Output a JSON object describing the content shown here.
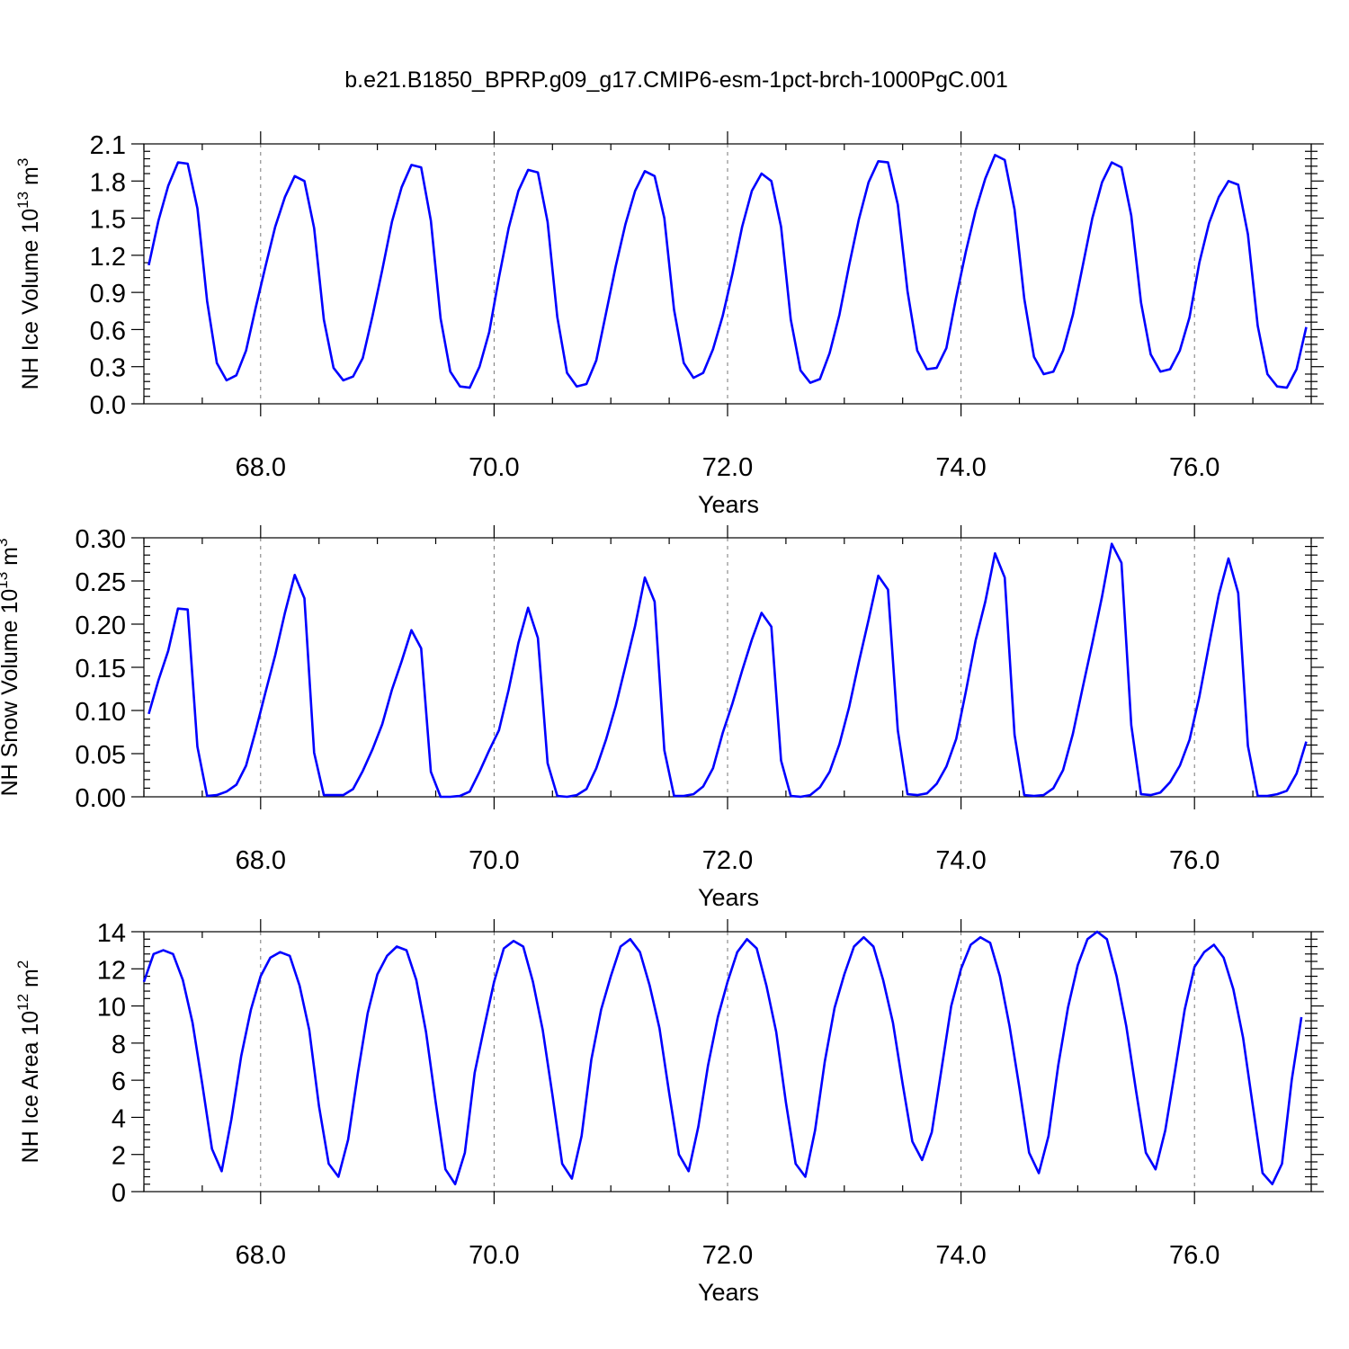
{
  "title": "b.e21.B1850_BPRP.g09_g17.CMIP6-esm-1pct-brch-1000PgC.001",
  "colors": {
    "series": "#0000ff",
    "axis": "#000000",
    "grid": "#777777"
  },
  "chart_data": [
    {
      "type": "line",
      "ylabel": {
        "main": "NH Ice Volume 10",
        "exp": "13",
        "unit": " m",
        "unit_exp": "3"
      },
      "xlabel": "Years",
      "xlim": [
        67.0,
        77.0
      ],
      "ylim": [
        0.0,
        2.1
      ],
      "x_ticks": [
        "68.0",
        "70.0",
        "72.0",
        "74.0",
        "76.0"
      ],
      "x_tick_values": [
        68,
        70,
        72,
        74,
        76
      ],
      "y_ticks": [
        "0.0",
        "0.3",
        "0.6",
        "0.9",
        "1.2",
        "1.5",
        "1.8",
        "2.1"
      ],
      "y_tick_values": [
        0,
        0.3,
        0.6,
        0.9,
        1.2,
        1.5,
        1.8,
        2.1
      ],
      "grid": "vertical dashed at major x ticks",
      "x_start": 67.0417,
      "x_step": 0.08333,
      "series": [
        {
          "values": [
            1.12,
            1.48,
            1.76,
            1.95,
            1.94,
            1.58,
            0.83,
            0.33,
            0.19,
            0.23,
            0.43,
            0.78,
            1.11,
            1.43,
            1.67,
            1.84,
            1.8,
            1.42,
            0.68,
            0.29,
            0.19,
            0.22,
            0.37,
            0.71,
            1.08,
            1.47,
            1.75,
            1.93,
            1.91,
            1.48,
            0.69,
            0.26,
            0.14,
            0.13,
            0.3,
            0.58,
            1.02,
            1.42,
            1.72,
            1.89,
            1.87,
            1.47,
            0.7,
            0.25,
            0.14,
            0.16,
            0.35,
            0.73,
            1.11,
            1.45,
            1.72,
            1.88,
            1.84,
            1.5,
            0.76,
            0.33,
            0.21,
            0.25,
            0.44,
            0.71,
            1.05,
            1.43,
            1.72,
            1.86,
            1.8,
            1.43,
            0.68,
            0.27,
            0.17,
            0.2,
            0.41,
            0.72,
            1.12,
            1.49,
            1.79,
            1.96,
            1.95,
            1.61,
            0.91,
            0.43,
            0.28,
            0.29,
            0.45,
            0.86,
            1.23,
            1.56,
            1.82,
            2.01,
            1.97,
            1.57,
            0.85,
            0.38,
            0.24,
            0.26,
            0.43,
            0.72,
            1.11,
            1.5,
            1.79,
            1.95,
            1.91,
            1.52,
            0.82,
            0.4,
            0.26,
            0.28,
            0.43,
            0.7,
            1.14,
            1.46,
            1.67,
            1.8,
            1.77,
            1.37,
            0.63,
            0.24,
            0.14,
            0.13,
            0.28,
            0.62
          ]
        }
      ]
    },
    {
      "type": "line",
      "ylabel": {
        "main": "NH Snow Volume 10",
        "exp": "13",
        "unit": " m",
        "unit_exp": "3"
      },
      "xlabel": "Years",
      "xlim": [
        67.0,
        77.0
      ],
      "ylim": [
        0.0,
        0.3
      ],
      "x_ticks": [
        "68.0",
        "70.0",
        "72.0",
        "74.0",
        "76.0"
      ],
      "x_tick_values": [
        68,
        70,
        72,
        74,
        76
      ],
      "y_ticks": [
        "0.00",
        "0.05",
        "0.10",
        "0.15",
        "0.20",
        "0.25",
        "0.30"
      ],
      "y_tick_values": [
        0,
        0.05,
        0.1,
        0.15,
        0.2,
        0.25,
        0.3
      ],
      "grid": "vertical dashed at major x ticks",
      "x_start": 67.0417,
      "x_step": 0.08333,
      "series": [
        {
          "values": [
            0.096,
            0.135,
            0.169,
            0.218,
            0.217,
            0.058,
            0.001,
            0.002,
            0.006,
            0.014,
            0.036,
            0.077,
            0.121,
            0.164,
            0.213,
            0.257,
            0.23,
            0.051,
            0.002,
            0.002,
            0.002,
            0.009,
            0.03,
            0.055,
            0.084,
            0.124,
            0.157,
            0.193,
            0.172,
            0.029,
            0.0,
            0.0,
            0.001,
            0.006,
            0.029,
            0.054,
            0.077,
            0.124,
            0.178,
            0.219,
            0.184,
            0.039,
            0.001,
            0.0,
            0.002,
            0.009,
            0.033,
            0.066,
            0.105,
            0.151,
            0.198,
            0.254,
            0.226,
            0.054,
            0.001,
            0.001,
            0.003,
            0.012,
            0.033,
            0.074,
            0.108,
            0.146,
            0.182,
            0.213,
            0.197,
            0.042,
            0.001,
            0.0,
            0.002,
            0.011,
            0.029,
            0.061,
            0.104,
            0.156,
            0.205,
            0.256,
            0.24,
            0.077,
            0.003,
            0.002,
            0.004,
            0.015,
            0.035,
            0.067,
            0.122,
            0.181,
            0.226,
            0.282,
            0.254,
            0.072,
            0.002,
            0.001,
            0.002,
            0.01,
            0.031,
            0.073,
            0.126,
            0.178,
            0.232,
            0.293,
            0.271,
            0.083,
            0.003,
            0.002,
            0.005,
            0.017,
            0.036,
            0.066,
            0.116,
            0.176,
            0.234,
            0.276,
            0.236,
            0.059,
            0.001,
            0.001,
            0.003,
            0.007,
            0.027,
            0.064
          ]
        }
      ]
    },
    {
      "type": "line",
      "ylabel": {
        "main": "NH Ice Area 10",
        "exp": "12",
        "unit": " m",
        "unit_exp": "2"
      },
      "xlabel": "Years",
      "xlim": [
        67.0,
        77.0
      ],
      "ylim": [
        0,
        14
      ],
      "x_ticks": [
        "68.0",
        "70.0",
        "72.0",
        "74.0",
        "76.0"
      ],
      "x_tick_values": [
        68,
        70,
        72,
        74,
        76
      ],
      "y_ticks": [
        "0",
        "2",
        "4",
        "6",
        "8",
        "10",
        "12",
        "14"
      ],
      "y_tick_values": [
        0,
        2,
        4,
        6,
        8,
        10,
        12,
        14
      ],
      "grid": "vertical dashed at major x ticks",
      "x_start": 67.0,
      "x_step": 0.08333,
      "series": [
        {
          "values": [
            11.3,
            12.8,
            13.0,
            12.8,
            11.4,
            9.1,
            5.8,
            2.3,
            1.1,
            3.9,
            7.3,
            9.8,
            11.6,
            12.6,
            12.9,
            12.7,
            11.1,
            8.7,
            4.6,
            1.5,
            0.8,
            2.8,
            6.4,
            9.6,
            11.7,
            12.7,
            13.2,
            13.0,
            11.4,
            8.6,
            4.8,
            1.2,
            0.4,
            2.1,
            6.4,
            8.9,
            11.3,
            13.1,
            13.5,
            13.2,
            11.3,
            8.7,
            5.2,
            1.5,
            0.7,
            3.0,
            7.1,
            9.8,
            11.6,
            13.2,
            13.6,
            12.9,
            11.1,
            8.8,
            5.3,
            2.0,
            1.1,
            3.5,
            6.8,
            9.4,
            11.3,
            12.9,
            13.6,
            13.1,
            11.1,
            8.6,
            4.8,
            1.5,
            0.8,
            3.3,
            7.0,
            9.9,
            11.7,
            13.2,
            13.7,
            13.2,
            11.4,
            9.1,
            5.8,
            2.7,
            1.7,
            3.2,
            6.6,
            10.0,
            12.0,
            13.3,
            13.7,
            13.4,
            11.6,
            8.9,
            5.6,
            2.1,
            1.0,
            3.0,
            6.8,
            9.9,
            12.2,
            13.6,
            14.0,
            13.6,
            11.6,
            8.9,
            5.4,
            2.1,
            1.2,
            3.3,
            6.5,
            9.8,
            12.1,
            12.9,
            13.3,
            12.6,
            10.9,
            8.3,
            4.6,
            1.0,
            0.4,
            1.5,
            6.0,
            9.4
          ]
        }
      ]
    }
  ]
}
